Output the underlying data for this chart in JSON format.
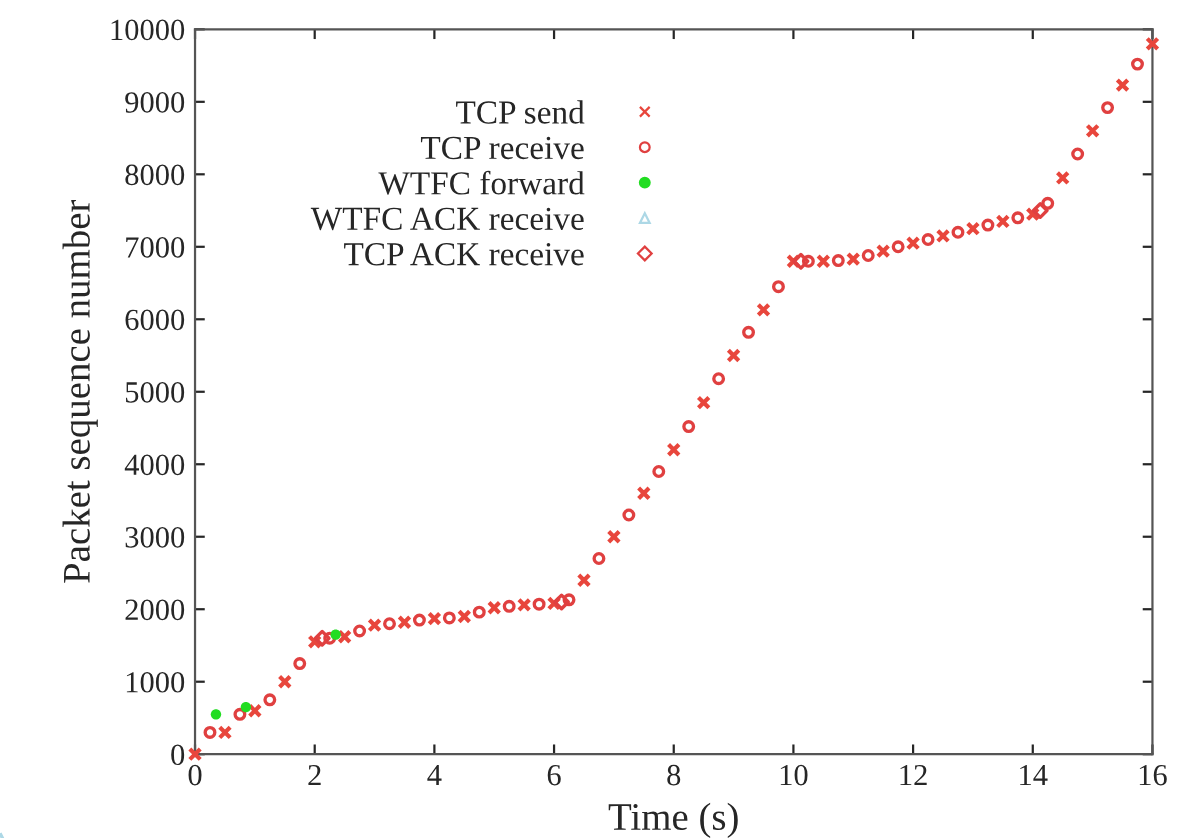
{
  "chart_data": {
    "type": "scatter",
    "xlabel": "Time (s)",
    "ylabel": "Packet sequence number",
    "series": [
      {
        "name": "TCP send",
        "color": "#e8463c",
        "marker": "cross",
        "x": [
          0,
          0.5,
          1.0,
          1.5,
          2.0,
          2.5,
          3.0,
          3.5,
          4.0,
          4.5,
          5.0,
          5.5,
          6.0,
          6.5,
          7.0,
          7.5,
          8.0,
          8.5,
          9.0,
          9.5,
          10.0,
          10.5,
          11.0,
          11.5,
          12.0,
          12.5,
          13.0,
          13.5,
          14.0,
          14.5,
          15.0,
          15.5,
          16.0
        ],
        "values": [
          0,
          300,
          600,
          1000,
          1550,
          1620,
          1780,
          1820,
          1870,
          1900,
          2020,
          2060,
          2080,
          2400,
          3000,
          3600,
          4200,
          4850,
          5500,
          6130,
          6800,
          6800,
          6830,
          6940,
          7050,
          7150,
          7250,
          7350,
          7450,
          7950,
          8600,
          9230,
          9800
        ]
      },
      {
        "name": "TCP receive",
        "color": "#e04040",
        "marker": "circle",
        "x": [
          0.25,
          0.75,
          1.25,
          1.75,
          2.25,
          2.75,
          3.25,
          3.75,
          4.25,
          4.75,
          5.25,
          5.75,
          6.25,
          6.75,
          7.25,
          7.75,
          8.25,
          8.75,
          9.25,
          9.75,
          10.25,
          10.75,
          11.25,
          11.75,
          12.25,
          12.75,
          13.25,
          13.75,
          14.25,
          14.75,
          15.25,
          15.75
        ],
        "values": [
          300,
          550,
          750,
          1250,
          1600,
          1700,
          1800,
          1850,
          1880,
          1960,
          2040,
          2070,
          2130,
          2700,
          3300,
          3900,
          4520,
          5180,
          5820,
          6450,
          6800,
          6810,
          6880,
          7000,
          7100,
          7200,
          7300,
          7400,
          7600,
          8280,
          8920,
          9520
        ]
      },
      {
        "name": "WTFC forward",
        "color": "#22dd22",
        "marker": "circle",
        "x": [
          0.35,
          0.85,
          2.35
        ],
        "values": [
          550,
          650,
          1650
        ]
      },
      {
        "name": "WTFC ACK receive",
        "color": "#add8e6",
        "marker": "triangle"
      },
      {
        "name": "TCP ACK receive",
        "color": "#e04040",
        "marker": "diamond",
        "x": [
          2.125,
          6.125,
          10.125,
          14.125
        ],
        "values": [
          1600,
          2100,
          6800,
          7500
        ]
      }
    ],
    "xlim": [
      0,
      16
    ],
    "xticks": [
      0,
      2,
      4,
      6,
      8,
      10,
      12,
      14,
      16
    ],
    "ylim": [
      0,
      10000
    ],
    "yticks": [
      0,
      1000,
      2000,
      3000,
      4000,
      5000,
      6000,
      7000,
      8000,
      9000,
      10000
    ],
    "legend": "top left",
    "grid": false
  }
}
